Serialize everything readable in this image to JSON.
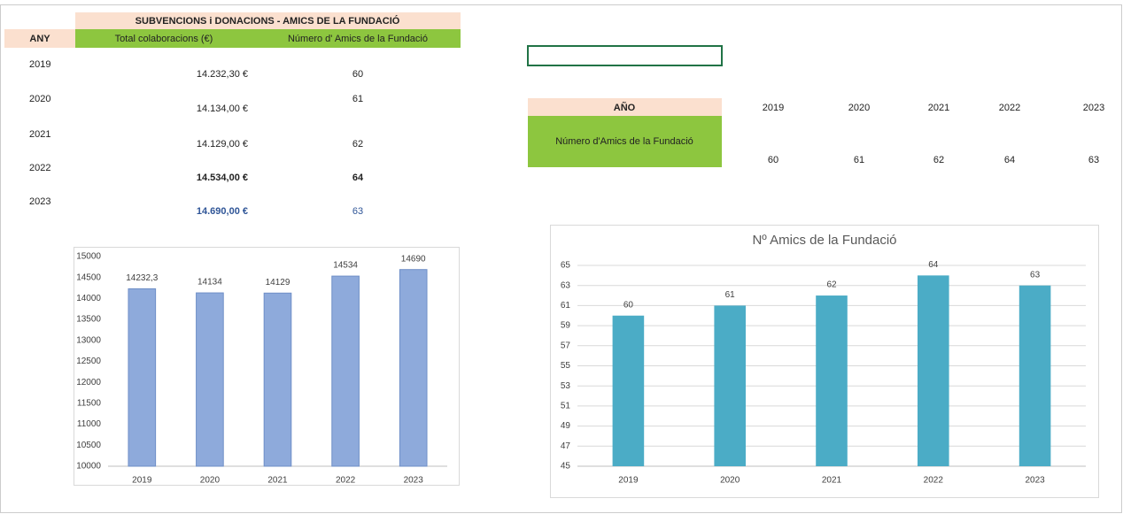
{
  "left_table": {
    "title": "SUBVENCIONS i DONACIONS - AMICS DE LA FUNDACIÓ",
    "headers": [
      "ANY",
      "Total colaboracions (€)",
      "Número d' Amics de la Fundació"
    ],
    "rows": [
      [
        "2019",
        "14.232,30 €",
        "60"
      ],
      [
        "2020",
        "14.134,00 €",
        "61"
      ],
      [
        "2021",
        "14.129,00 €",
        "62"
      ],
      [
        "2022",
        "14.534,00 €",
        "64"
      ],
      [
        "2023",
        "14.690,00 €",
        "63"
      ]
    ]
  },
  "right_table": {
    "header": "AÑO",
    "years": [
      "2019",
      "2020",
      "2021",
      "2022",
      "2023"
    ],
    "row_label": "Número d'Amics de la Fundació",
    "values": [
      "60",
      "61",
      "62",
      "64",
      "63"
    ]
  },
  "chart_data": [
    {
      "type": "bar",
      "categories": [
        "2019",
        "2020",
        "2021",
        "2022",
        "2023"
      ],
      "values": [
        14232.3,
        14134,
        14129,
        14534,
        14690
      ],
      "value_labels": [
        "14232,3",
        "14134",
        "14129",
        "14534",
        "14690"
      ],
      "color": "#8eaadb",
      "ylim": [
        10000,
        15000
      ],
      "yticks": [
        10000,
        10500,
        11000,
        11500,
        12000,
        12500,
        13000,
        13500,
        14000,
        14500,
        15000
      ],
      "grid": false
    },
    {
      "type": "bar",
      "title": "Nº Amics de la Fundació",
      "categories": [
        "2019",
        "2020",
        "2021",
        "2022",
        "2023"
      ],
      "values": [
        60,
        61,
        62,
        64,
        63
      ],
      "color": "#4bacc6",
      "ylim": [
        45,
        65
      ],
      "yticks": [
        45,
        47,
        49,
        51,
        53,
        55,
        57,
        59,
        61,
        63,
        65
      ],
      "grid": true
    }
  ]
}
